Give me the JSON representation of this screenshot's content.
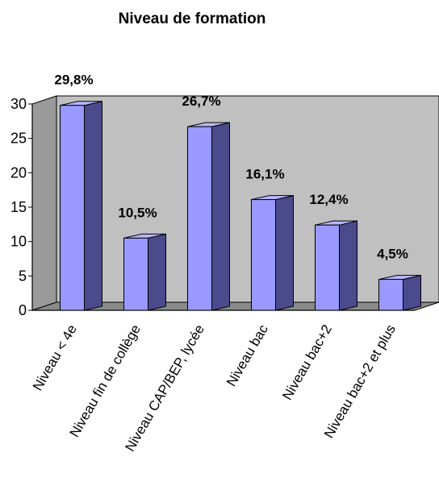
{
  "chart_data": {
    "type": "bar",
    "title": "Niveau de formation",
    "categories": [
      "Niveau < 4e",
      "Niveau fin de collège",
      "Niveau CAP/BEP, lycée",
      "Niveau bac",
      "Niveau bac+2",
      "Niveau bac+2 et plus"
    ],
    "values": [
      29.8,
      10.5,
      26.7,
      16.1,
      12.4,
      4.5
    ],
    "data_labels": [
      "29,8%",
      "10,5%",
      "26,7%",
      "16,1%",
      "12,4%",
      "4,5%"
    ],
    "yticks": [
      0,
      5,
      10,
      15,
      20,
      25,
      30
    ],
    "ylim": [
      0,
      30
    ],
    "grid": false,
    "three_d": true,
    "colors": {
      "bar_front": "#9999ff",
      "bar_side": "#4a4a8c",
      "bar_top": "#b8b8ff",
      "back_wall": "#c0c0c0",
      "floor": "#8a8a8a"
    }
  }
}
